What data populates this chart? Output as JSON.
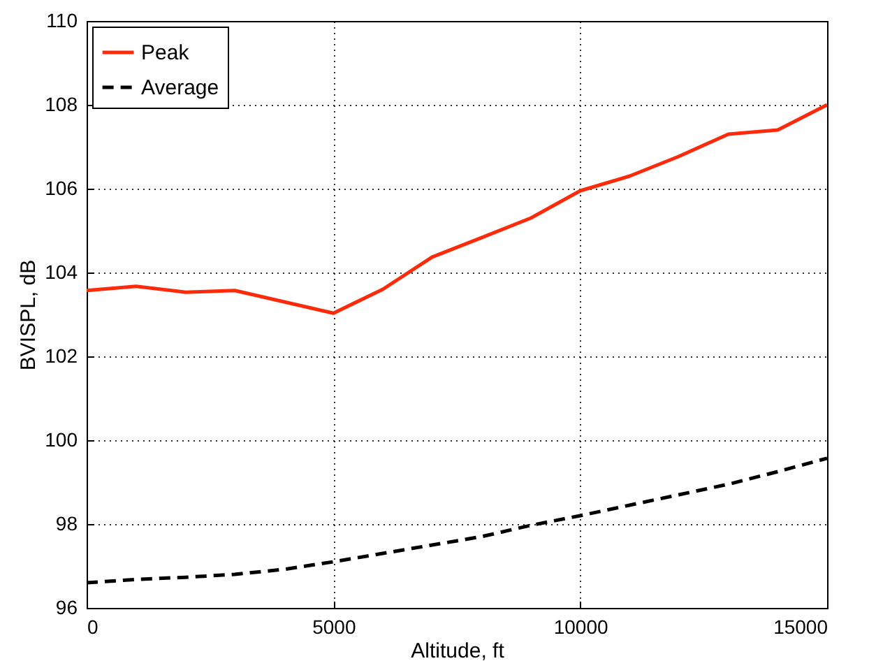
{
  "chart_data": {
    "type": "line",
    "xlabel": "Altitude, ft",
    "ylabel": "BVISPL, dB",
    "x": [
      0,
      1000,
      2000,
      3000,
      4000,
      5000,
      6000,
      7000,
      8000,
      9000,
      10000,
      11000,
      12000,
      13000,
      14000,
      15000
    ],
    "series": [
      {
        "name": "Peak",
        "color": "#ff2a0a",
        "line_style": "solid",
        "values": [
          103.57,
          103.67,
          103.53,
          103.57,
          103.3,
          103.03,
          103.6,
          104.37,
          104.83,
          105.3,
          105.95,
          106.3,
          106.77,
          107.3,
          107.4,
          108.0
        ]
      },
      {
        "name": "Average",
        "color": "#000000",
        "line_style": "dashed",
        "values": [
          96.6,
          96.68,
          96.73,
          96.8,
          96.92,
          97.1,
          97.3,
          97.5,
          97.7,
          97.97,
          98.2,
          98.45,
          98.7,
          98.95,
          99.25,
          99.57
        ]
      }
    ],
    "xlim": [
      0,
      15000
    ],
    "xticks": [
      0,
      5000,
      10000,
      15000
    ],
    "ylim": [
      96,
      110
    ],
    "yticks": [
      96,
      98,
      100,
      102,
      104,
      106,
      108,
      110
    ],
    "grid": true,
    "legend": "top left",
    "marker": "none"
  }
}
